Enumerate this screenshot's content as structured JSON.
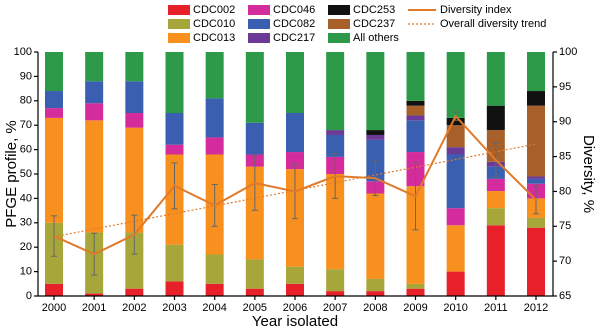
{
  "chart_data": {
    "type": "stacked-bar-line",
    "x_label": "Year isolated",
    "y_label": "PFGE profile, %",
    "y2_label": "Diversity, %",
    "categories": [
      "2000",
      "2001",
      "2002",
      "2003",
      "2004",
      "2005",
      "2006",
      "2007",
      "2008",
      "2009",
      "2010",
      "2011",
      "2012"
    ],
    "ylim": [
      0,
      100
    ],
    "yticks": [
      0,
      10,
      20,
      30,
      40,
      50,
      60,
      70,
      80,
      90,
      100
    ],
    "y2lim": [
      65,
      100
    ],
    "y2ticks": [
      65,
      70,
      75,
      80,
      85,
      90,
      95,
      100
    ],
    "series": [
      {
        "name": "CDC002",
        "color": "#e8202a",
        "values": [
          5,
          1,
          3,
          6,
          5,
          3,
          5,
          2,
          2,
          3,
          10,
          29,
          28
        ]
      },
      {
        "name": "CDC010",
        "color": "#a6a63a",
        "values": [
          25,
          25,
          23,
          15,
          12,
          12,
          7,
          9,
          5,
          2,
          0,
          7,
          4
        ]
      },
      {
        "name": "CDC013",
        "color": "#f7901e",
        "values": [
          43,
          46,
          43,
          37,
          41,
          38,
          40,
          39,
          35,
          40,
          19,
          7,
          8
        ]
      },
      {
        "name": "CDC046",
        "color": "#d42c9c",
        "values": [
          4,
          7,
          6,
          4,
          7,
          5,
          7,
          7,
          5,
          14,
          7,
          5,
          6
        ]
      },
      {
        "name": "CDC082",
        "color": "#3a5fb0",
        "values": [
          7,
          9,
          13,
          13,
          16,
          13,
          16,
          9,
          17,
          13,
          22,
          5,
          2
        ]
      },
      {
        "name": "CDC217",
        "color": "#6b3a96",
        "values": [
          0,
          0,
          0,
          0,
          0,
          0,
          0,
          2,
          2,
          2,
          3,
          2,
          1
        ]
      },
      {
        "name": "CDC237",
        "color": "#a8602a",
        "values": [
          0,
          0,
          0,
          0,
          0,
          0,
          0,
          0,
          0,
          4,
          9,
          13,
          29
        ]
      },
      {
        "name": "CDC253",
        "color": "#111111",
        "values": [
          0,
          0,
          0,
          0,
          0,
          0,
          0,
          0,
          2,
          2,
          3,
          10,
          6
        ]
      },
      {
        "name": "All others",
        "color": "#2d9a4a",
        "values": [
          16,
          12,
          12,
          25,
          19,
          29,
          25,
          32,
          32,
          20,
          27,
          22,
          16
        ]
      }
    ],
    "line": {
      "name": "Diversity index",
      "color": "#e07a2a",
      "axis": "y2",
      "values": [
        73.6,
        71,
        73.8,
        80.8,
        78,
        81.2,
        80,
        82.2,
        81.9,
        79.3,
        90.8,
        84.5,
        78.8
      ],
      "errors": [
        2.9,
        3,
        2.8,
        3.3,
        3,
        3.9,
        3.9,
        3.2,
        2.5,
        4.8,
        0.6,
        2.4,
        2
      ]
    },
    "trend": {
      "name": "Overall diversity trend",
      "color": "#e07a2a",
      "axis": "y2",
      "x": [
        "2000",
        "2012"
      ],
      "values": [
        73.5,
        86.8
      ]
    }
  }
}
